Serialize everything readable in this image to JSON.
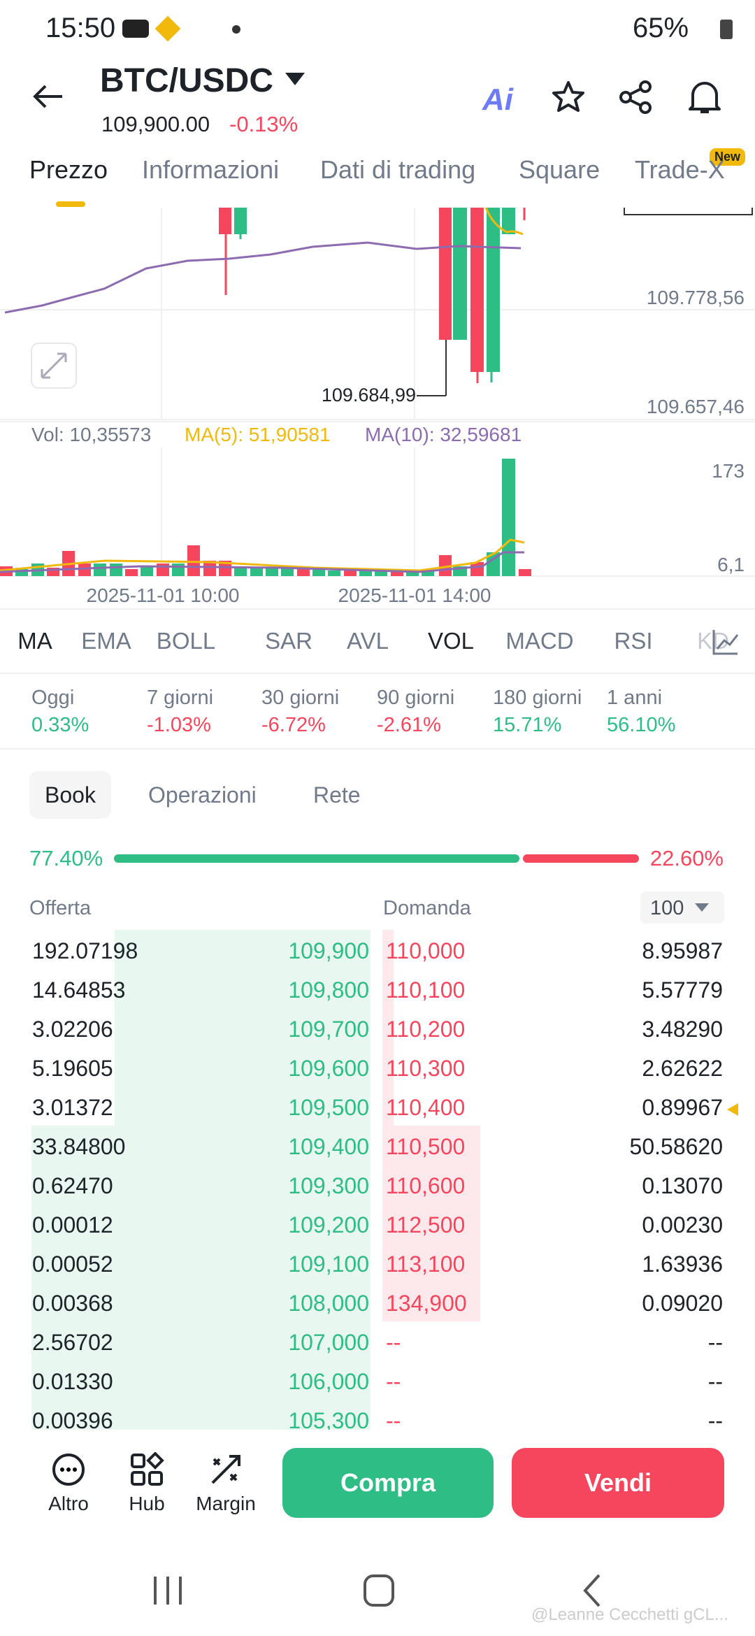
{
  "status": {
    "time": "15:50",
    "battery": "65%"
  },
  "header": {
    "pair": "BTC/USDC",
    "price": "109,900.00",
    "change": "-0.13%"
  },
  "tabs": [
    "Prezzo",
    "Informazioni",
    "Dati di trading",
    "Square",
    "Trade-X"
  ],
  "tab_badge": "New",
  "chart": {
    "axis_labels": [
      "109.778,56",
      "109.657,46"
    ],
    "low_label": "109.684,99",
    "volume_legend": [
      "Vol: 10,35573",
      "MA(5): 51,90581",
      "MA(10): 32,59681"
    ],
    "volume_axis": [
      "173",
      "6,1"
    ],
    "dates": [
      "2025-11-01 10:00",
      "2025-11-01 14:00"
    ]
  },
  "indicators": [
    "MA",
    "EMA",
    "BOLL",
    "SAR",
    "AVL",
    "VOL",
    "MACD",
    "RSI",
    "KD"
  ],
  "performance": [
    {
      "label": "Oggi",
      "value": "0.33%"
    },
    {
      "label": "7 giorni",
      "value": "-1.03%"
    },
    {
      "label": "30 giorni",
      "value": "-6.72%"
    },
    {
      "label": "90 giorni",
      "value": "-2.61%"
    },
    {
      "label": "180 giorni",
      "value": "15.71%"
    },
    {
      "label": "1 anni",
      "value": "56.10%"
    }
  ],
  "book_tabs": [
    "Book",
    "Operazioni",
    "Rete"
  ],
  "ratio": {
    "bid": "77.40%",
    "ask": "22.60%"
  },
  "columns": {
    "bid": "Offerta",
    "ask": "Domanda",
    "depth": "100"
  },
  "rows": [
    [
      "192.07198",
      "109,900",
      "110,000",
      "8.95987"
    ],
    [
      "14.64853",
      "109,800",
      "110,100",
      "5.57779"
    ],
    [
      "3.02206",
      "109,700",
      "110,200",
      "3.48290"
    ],
    [
      "5.19605",
      "109,600",
      "110,300",
      "2.62622"
    ],
    [
      "3.01372",
      "109,500",
      "110,400",
      "0.89967"
    ],
    [
      "33.84800",
      "109,400",
      "110,500",
      "50.58620"
    ],
    [
      "0.62470",
      "109,300",
      "110,600",
      "0.13070"
    ],
    [
      "0.00012",
      "109,200",
      "112,500",
      "0.00230"
    ],
    [
      "0.00052",
      "109,100",
      "113,100",
      "1.63936"
    ],
    [
      "0.00368",
      "108,000",
      "134,900",
      "0.09020"
    ],
    [
      "2.56702",
      "107,000",
      "--",
      "--"
    ],
    [
      "0.01330",
      "106,000",
      "--",
      "--"
    ],
    [
      "0.00396",
      "105,300",
      "--",
      "--"
    ]
  ],
  "actions": [
    "Altro",
    "Hub",
    "Margin"
  ],
  "buy": "Compra",
  "sell": "Vendi",
  "watermark": "@Leanne Cecchetti gCL..."
}
